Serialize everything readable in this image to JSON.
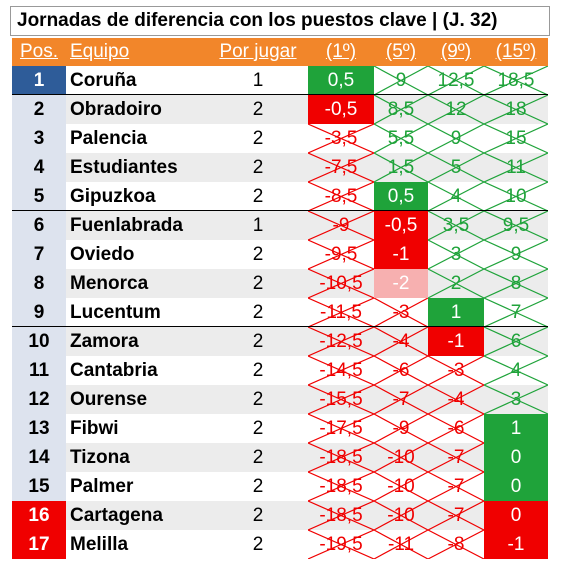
{
  "title": "Jornadas de diferencia con los puestos clave | (J. 32)",
  "header": [
    "Pos.",
    "Equipo",
    "Por jugar",
    "(1º)",
    "(5º)",
    "(9º)",
    "(15º)"
  ],
  "rows": [
    [
      1,
      "Coruña",
      1,
      "0,5",
      "9",
      "12,5",
      "18,5"
    ],
    [
      2,
      "Obradoiro",
      2,
      "-0,5",
      "8,5",
      "12",
      "18"
    ],
    [
      3,
      "Palencia",
      2,
      "-3,5",
      "5,5",
      "9",
      "15"
    ],
    [
      4,
      "Estudiantes",
      2,
      "-7,5",
      "1,5",
      "5",
      "11"
    ],
    [
      5,
      "Gipuzkoa",
      2,
      "-8,5",
      "0,5",
      "4",
      "10"
    ],
    [
      6,
      "Fuenlabrada",
      1,
      "-9",
      "-0,5",
      "3,5",
      "9,5"
    ],
    [
      7,
      "Oviedo",
      2,
      "-9,5",
      "-1",
      "3",
      "9"
    ],
    [
      8,
      "Menorca",
      2,
      "-10,5",
      "-2",
      "2",
      "8"
    ],
    [
      9,
      "Lucentum",
      2,
      "-11,5",
      "-3",
      "1",
      "7"
    ],
    [
      10,
      "Zamora",
      2,
      "-12,5",
      "-4",
      "-1",
      "6"
    ],
    [
      11,
      "Cantabria",
      2,
      "-14,5",
      "-6",
      "-3",
      "4"
    ],
    [
      12,
      "Ourense",
      2,
      "-15,5",
      "-7",
      "-4",
      "3"
    ],
    [
      13,
      "Fibwi",
      2,
      "-17,5",
      "-9",
      "-6",
      "1"
    ],
    [
      14,
      "Tizona",
      2,
      "-18,5",
      "-10",
      "-7",
      "0"
    ],
    [
      15,
      "Palmer",
      2,
      "-18,5",
      "-10",
      "-7",
      "0"
    ],
    [
      16,
      "Cartagena",
      2,
      "-18,5",
      "-10",
      "-7",
      "0"
    ],
    [
      17,
      "Melilla",
      2,
      "-19,5",
      "-11",
      "-8",
      "-1"
    ]
  ]
}
